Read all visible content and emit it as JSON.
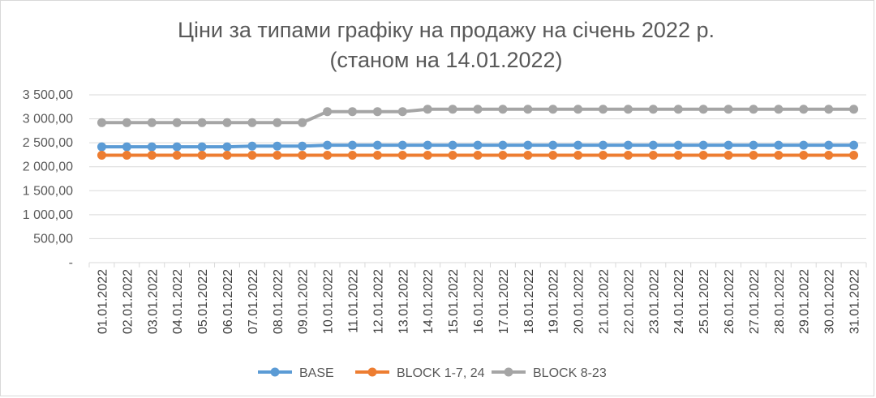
{
  "chart_data": {
    "type": "line",
    "title_lines": [
      "Ціни за типами графіку на продажу  на січень 2022 р.",
      "(станом на 14.01.2022)"
    ],
    "xlabel": "",
    "ylabel": "",
    "ylim": [
      0,
      3500
    ],
    "yticks": [
      {
        "value": 0,
        "label": "-"
      },
      {
        "value": 500,
        "label": "500,00"
      },
      {
        "value": 1000,
        "label": "1 000,00"
      },
      {
        "value": 1500,
        "label": "1 500,00"
      },
      {
        "value": 2000,
        "label": "2 000,00"
      },
      {
        "value": 2500,
        "label": "2 500,00"
      },
      {
        "value": 3000,
        "label": "3 000,00"
      },
      {
        "value": 3500,
        "label": "3 500,00"
      }
    ],
    "grid": true,
    "legend_position": "bottom",
    "categories": [
      "01.01.2022",
      "02.01.2022",
      "03.01.2022",
      "04.01.2022",
      "05.01.2022",
      "06.01.2022",
      "07.01.2022",
      "08.01.2022",
      "09.01.2022",
      "10.01.2022",
      "11.01.2022",
      "12.01.2022",
      "13.01.2022",
      "14.01.2022",
      "15.01.2022",
      "16.01.2022",
      "17.01.2022",
      "18.01.2022",
      "19.01.2022",
      "20.01.2022",
      "21.01.2022",
      "22.01.2022",
      "23.01.2022",
      "24.01.2022",
      "25.01.2022",
      "26.01.2022",
      "27.01.2022",
      "28.01.2022",
      "29.01.2022",
      "30.01.2022",
      "31.01.2022"
    ],
    "series": [
      {
        "name": "BASE",
        "color": "#5b9bd5",
        "values": [
          2415,
          2415,
          2415,
          2415,
          2415,
          2415,
          2430,
          2430,
          2430,
          2450,
          2450,
          2450,
          2450,
          2450,
          2450,
          2450,
          2450,
          2450,
          2450,
          2450,
          2450,
          2450,
          2450,
          2450,
          2450,
          2450,
          2450,
          2450,
          2450,
          2450,
          2450
        ]
      },
      {
        "name": "BLOCK 1-7, 24",
        "color": "#ed7d31",
        "values": [
          2240,
          2240,
          2240,
          2240,
          2240,
          2240,
          2240,
          2240,
          2240,
          2240,
          2240,
          2240,
          2240,
          2240,
          2240,
          2240,
          2240,
          2240,
          2240,
          2240,
          2240,
          2240,
          2240,
          2240,
          2240,
          2240,
          2240,
          2240,
          2240,
          2240,
          2240
        ]
      },
      {
        "name": "BLOCK 8-23",
        "color": "#a5a5a5",
        "values": [
          2920,
          2920,
          2920,
          2920,
          2920,
          2920,
          2920,
          2920,
          2920,
          3150,
          3150,
          3150,
          3150,
          3200,
          3200,
          3200,
          3200,
          3200,
          3200,
          3200,
          3200,
          3200,
          3200,
          3200,
          3200,
          3200,
          3200,
          3200,
          3200,
          3200,
          3200
        ]
      }
    ]
  }
}
